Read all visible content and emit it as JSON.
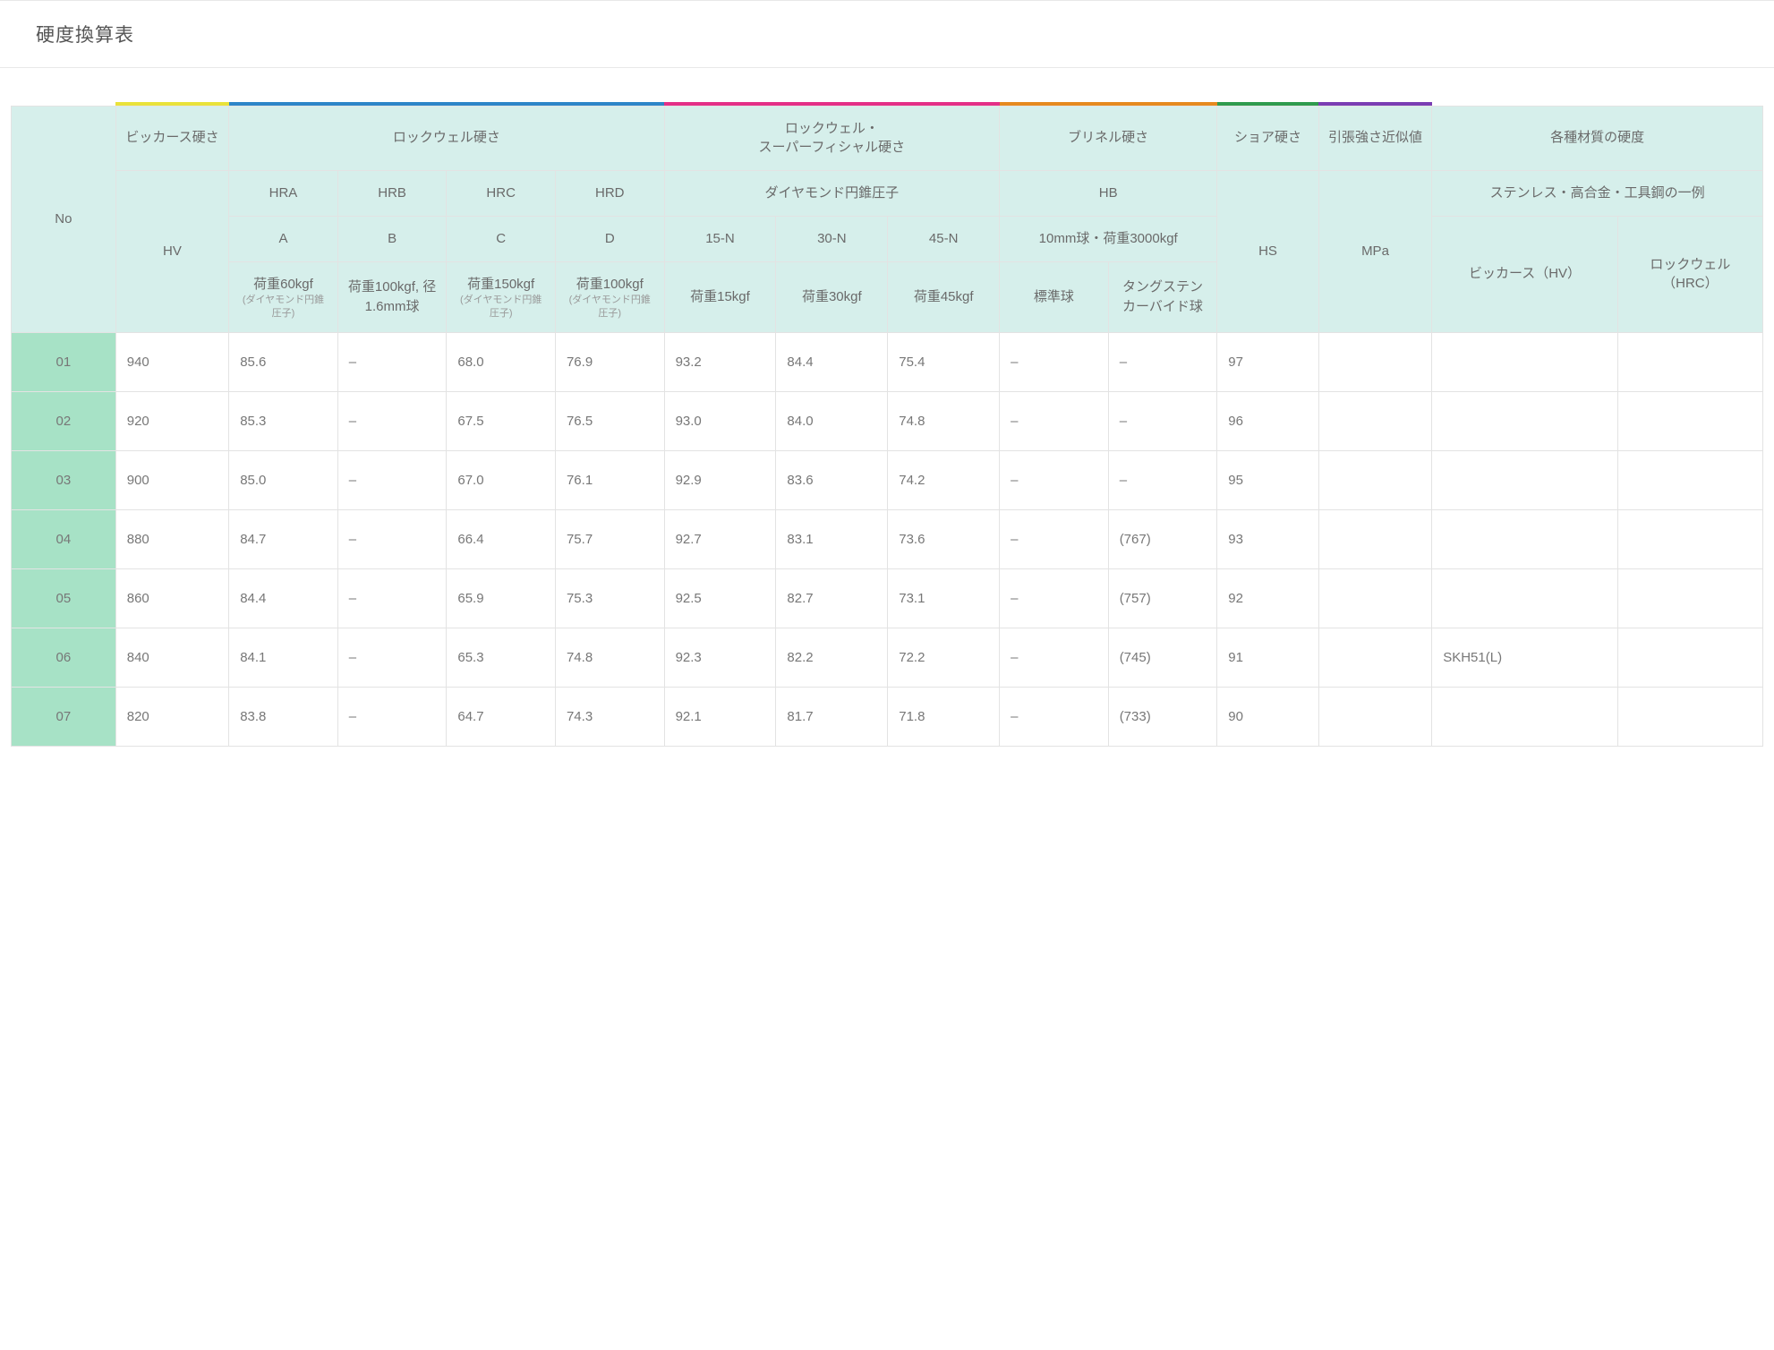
{
  "page": {
    "title": "硬度換算表"
  },
  "headers": {
    "no": "No",
    "group1": "ビッカース硬さ",
    "group2": "ロックウェル硬さ",
    "group3": "ロックウェル・\nスーパーフィシャル硬さ",
    "group4": "ブリネル硬さ",
    "group5": "ショア硬さ",
    "group6": "引張強さ近似値",
    "group7": "各種材質の硬度",
    "sub_hv": "HV",
    "sub_hra": "HRA",
    "sub_hrb": "HRB",
    "sub_hrc": "HRC",
    "sub_hrd": "HRD",
    "sub_diamond": "ダイヤモンド円錐圧子",
    "sub_hb": "HB",
    "sub_hs": "HS",
    "sub_mpa": "MPa",
    "sub_materials": "ステンレス・高合金・工具鋼の一例",
    "r3_a": "A",
    "r3_b": "B",
    "r3_c": "C",
    "r3_d": "D",
    "r3_15n": "15-N",
    "r3_30n": "30-N",
    "r3_45n": "45-N",
    "r3_hb": "10mm球・荷重3000kgf",
    "r4_a": "荷重60kgf",
    "r4_a_sm": "(ダイヤモンド円錐圧子)",
    "r4_b": "荷重100kgf, 径1.6mm球",
    "r4_c": "荷重150kgf",
    "r4_c_sm": "(ダイヤモンド円錐圧子)",
    "r4_d": "荷重100kgf",
    "r4_d_sm": "(ダイヤモンド円錐圧子)",
    "r4_15n": "荷重15kgf",
    "r4_30n": "荷重30kgf",
    "r4_45n": "荷重45kgf",
    "r4_hb1": "標準球",
    "r4_hb2": "タングステンカーバイド球",
    "r4_m1": "ビッカース（HV）",
    "r4_m2": "ロックウェル（HRC）"
  },
  "rows": [
    {
      "no": "01",
      "hv": "940",
      "hra": "85.6",
      "hrb": "–",
      "hrc": "68.0",
      "hrd": "76.9",
      "n15": "93.2",
      "n30": "84.4",
      "n45": "75.4",
      "hb1": "–",
      "hb2": "–",
      "hs": "97",
      "mpa": "",
      "m1": "",
      "m2": ""
    },
    {
      "no": "02",
      "hv": "920",
      "hra": "85.3",
      "hrb": "–",
      "hrc": "67.5",
      "hrd": "76.5",
      "n15": "93.0",
      "n30": "84.0",
      "n45": "74.8",
      "hb1": "–",
      "hb2": "–",
      "hs": "96",
      "mpa": "",
      "m1": "",
      "m2": ""
    },
    {
      "no": "03",
      "hv": "900",
      "hra": "85.0",
      "hrb": "–",
      "hrc": "67.0",
      "hrd": "76.1",
      "n15": "92.9",
      "n30": "83.6",
      "n45": "74.2",
      "hb1": "–",
      "hb2": "–",
      "hs": "95",
      "mpa": "",
      "m1": "",
      "m2": ""
    },
    {
      "no": "04",
      "hv": "880",
      "hra": "84.7",
      "hrb": "–",
      "hrc": "66.4",
      "hrd": "75.7",
      "n15": "92.7",
      "n30": "83.1",
      "n45": "73.6",
      "hb1": "–",
      "hb2": "(767)",
      "hs": "93",
      "mpa": "",
      "m1": "",
      "m2": ""
    },
    {
      "no": "05",
      "hv": "860",
      "hra": "84.4",
      "hrb": "–",
      "hrc": "65.9",
      "hrd": "75.3",
      "n15": "92.5",
      "n30": "82.7",
      "n45": "73.1",
      "hb1": "–",
      "hb2": "(757)",
      "hs": "92",
      "mpa": "",
      "m1": "",
      "m2": ""
    },
    {
      "no": "06",
      "hv": "840",
      "hra": "84.1",
      "hrb": "–",
      "hrc": "65.3",
      "hrd": "74.8",
      "n15": "92.3",
      "n30": "82.2",
      "n45": "72.2",
      "hb1": "–",
      "hb2": "(745)",
      "hs": "91",
      "mpa": "",
      "m1": "SKH51(L)",
      "m2": ""
    },
    {
      "no": "07",
      "hv": "820",
      "hra": "83.8",
      "hrb": "–",
      "hrc": "64.7",
      "hrd": "74.3",
      "n15": "92.1",
      "n30": "81.7",
      "n45": "71.8",
      "hb1": "–",
      "hb2": "(733)",
      "hs": "90",
      "mpa": "",
      "m1": "",
      "m2": ""
    }
  ],
  "style": {
    "stripe_colors": {
      "vickers": "#e9e23a",
      "rockwell": "#2d86c8",
      "superficial": "#e42f87",
      "brinell": "#e68a1f",
      "shore": "#2f9b4e",
      "tensile": "#7a3db3"
    },
    "header_bg": "#d6efeb",
    "row_no_bg": "#a7e2c6",
    "border_color": "#e3e3e3",
    "text_color": "#666"
  }
}
